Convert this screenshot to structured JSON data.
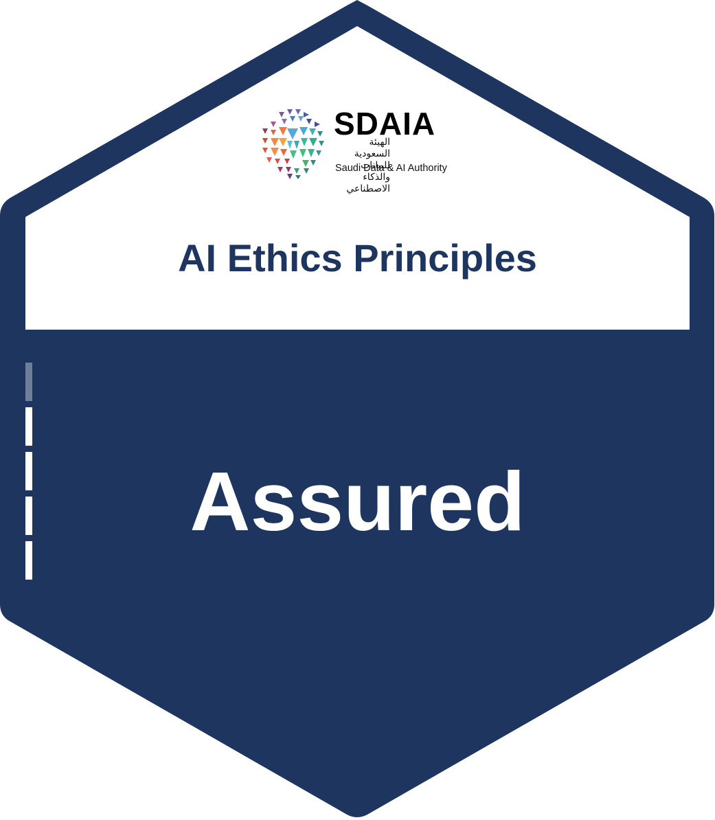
{
  "badge": {
    "title": "AI Ethics Principles",
    "status": "Assured",
    "colors": {
      "navy": "#1e365f",
      "white": "#ffffff",
      "progress_dim": "#6f7f99"
    },
    "progress": {
      "segments_total": 5,
      "segments_filled": 4
    }
  },
  "logo": {
    "wordmark": "SDAIA",
    "arabic_name": "الهيئة السعودية للبيانات والذكاء الاصطناعي",
    "english_name": "Saudi Data & AI Authority",
    "icon": "sdaia-logo-icon"
  }
}
